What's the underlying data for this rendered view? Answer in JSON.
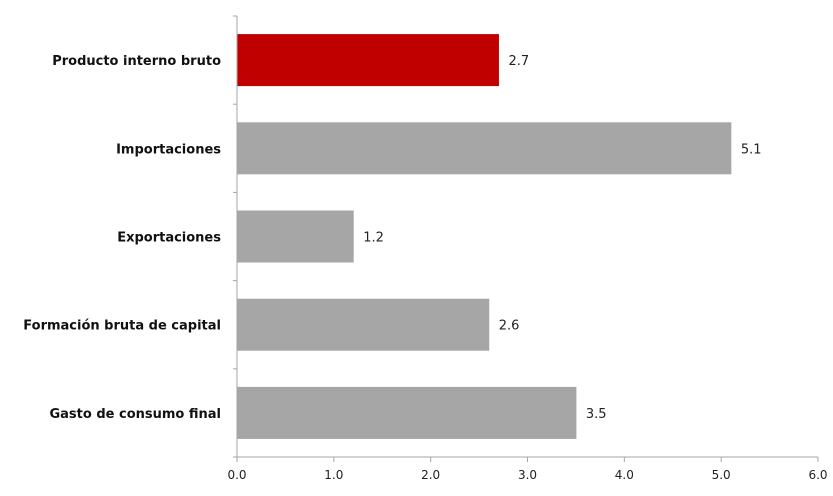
{
  "chart_data": {
    "type": "bar",
    "orientation": "horizontal",
    "categories": [
      "Producto interno bruto",
      "Importaciones",
      "Exportaciones",
      "Formación bruta de capital",
      "Gasto de consumo final"
    ],
    "values": [
      2.7,
      5.1,
      1.2,
      2.6,
      3.5
    ],
    "data_labels": [
      "2.7",
      "5.1",
      "1.2",
      "2.6",
      "3.5"
    ],
    "bar_colors": [
      "#c00000",
      "#a6a6a6",
      "#a6a6a6",
      "#a6a6a6",
      "#a6a6a6"
    ],
    "xlim": [
      0,
      6
    ],
    "x_ticks": [
      0,
      1,
      2,
      3,
      4,
      5,
      6
    ],
    "x_tick_labels": [
      "0.0",
      "1.0",
      "2.0",
      "3.0",
      "4.0",
      "5.0",
      "6.0"
    ],
    "title": "",
    "xlabel": "",
    "ylabel": "",
    "grid": false,
    "legend": "none",
    "axis_color": "#a6a6a6"
  }
}
